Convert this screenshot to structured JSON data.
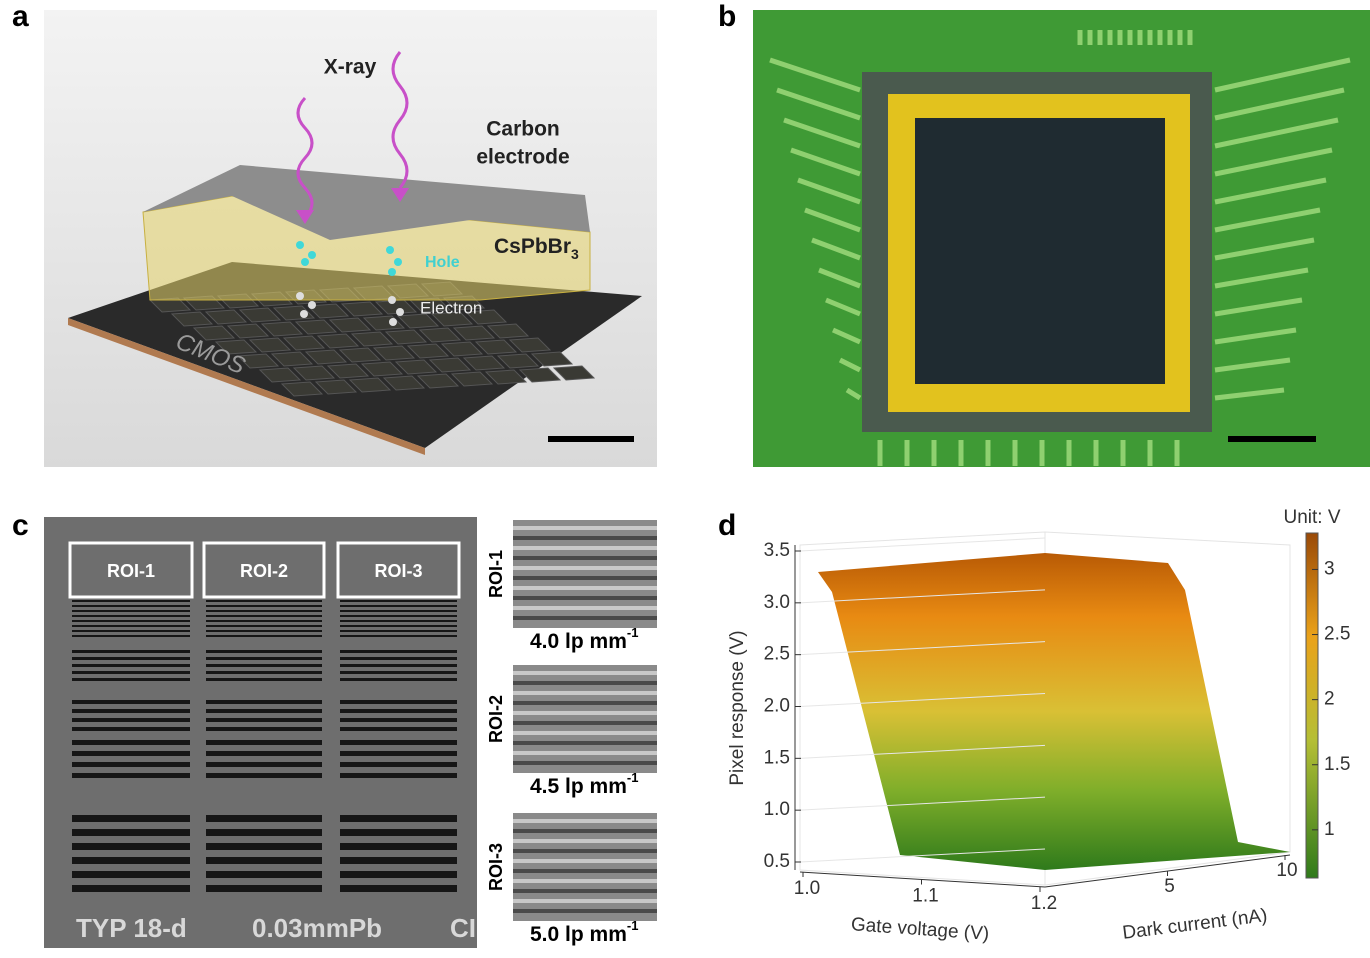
{
  "panel_a": {
    "label": "a",
    "xray": "X-ray",
    "carbon_electrode": [
      "Carbon",
      "electrode"
    ],
    "perovskite": "CsPbBr",
    "perovskite_sub": "3",
    "hole": "Hole",
    "electron": "Electron",
    "chip": "CMOS"
  },
  "panel_b": {
    "label": "b"
  },
  "panel_c": {
    "label": "c",
    "roi_boxes": [
      "ROI-1",
      "ROI-2",
      "ROI-3"
    ],
    "image_text": [
      "TYP 18-d",
      "0.03mmPb",
      "CI"
    ],
    "insets": [
      {
        "roi": "ROI-1",
        "resolution": "4.0 lp mm",
        "exponent": "-1"
      },
      {
        "roi": "ROI-2",
        "resolution": "4.5 lp mm",
        "exponent": "-1"
      },
      {
        "roi": "ROI-3",
        "resolution": "5.0 lp mm",
        "exponent": "-1"
      }
    ]
  },
  "chart_data": {
    "type": "surface3d",
    "label": "d",
    "zlabel": "Pixel response (V)",
    "xlabel": "Gate voltage (V)",
    "ylabel": "Dark current (nA)",
    "zlim": [
      0.5,
      3.5
    ],
    "zticks": [
      0.5,
      {
        "value": 1,
        "label": "1.0"
      },
      1.5,
      {
        "value": 2,
        "label": "2.0"
      },
      2.5,
      {
        "value": 3,
        "label": "3.0"
      },
      3.5
    ],
    "xlim": [
      1,
      1.2
    ],
    "xticks": [
      {
        "value": 1,
        "label": "1.0"
      },
      1.1,
      1.2
    ],
    "ylim": [
      0,
      10
    ],
    "yticks": [
      5,
      10
    ],
    "colorbar_title": "Unit: V",
    "clim": [
      0.63,
      3.28
    ],
    "cticks": [
      1,
      1.5,
      2,
      2.5,
      3
    ]
  }
}
